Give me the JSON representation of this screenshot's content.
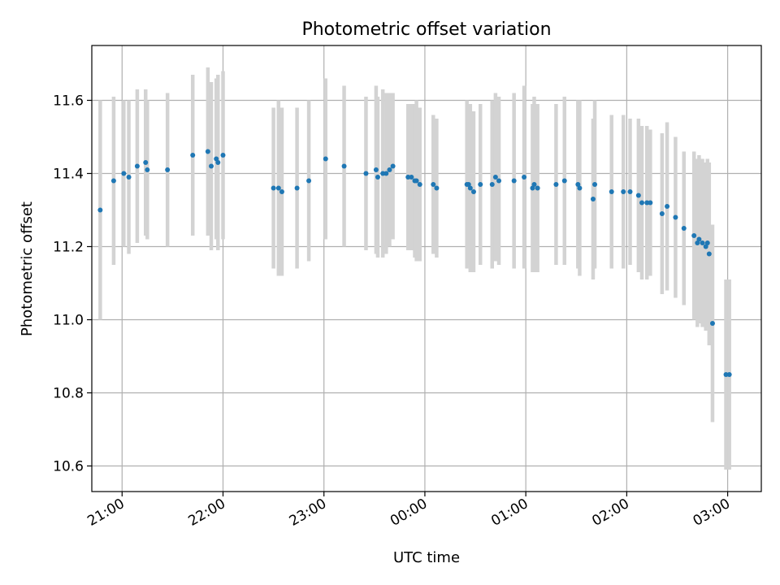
{
  "chart_data": {
    "type": "scatter",
    "title": "Photometric offset variation",
    "xlabel": "UTC time",
    "ylabel": "Photometric offset",
    "xlim": [
      "20:42",
      "03:20"
    ],
    "ylim": [
      10.53,
      11.75
    ],
    "grid": true,
    "x_ticks": [
      "21:00",
      "22:00",
      "23:00",
      "00:00",
      "01:00",
      "02:00",
      "03:00"
    ],
    "y_ticks": [
      "10.6",
      "10.8",
      "11.0",
      "11.2",
      "11.4",
      "11.6"
    ],
    "colors": {
      "point": "#1f77b4",
      "errorbar": "#d3d3d3",
      "grid": "#b0b0b0"
    },
    "series": [
      {
        "x": [
          "20:47",
          "20:55",
          "21:01",
          "21:04",
          "21:09",
          "21:14",
          "21:15",
          "21:27",
          "21:42",
          "21:51",
          "21:53",
          "21:56",
          "21:57",
          "22:00",
          "22:30",
          "22:33",
          "22:35",
          "22:44",
          "22:51",
          "23:01",
          "23:12",
          "23:25",
          "23:31",
          "23:32",
          "23:35",
          "23:37",
          "23:39",
          "23:41",
          "23:50",
          "23:52",
          "23:54",
          "23:55",
          "23:57",
          "00:05",
          "00:07",
          "00:25",
          "00:26",
          "00:27",
          "00:29",
          "00:33",
          "00:40",
          "00:42",
          "00:44",
          "00:53",
          "00:59",
          "01:04",
          "01:05",
          "01:07",
          "01:18",
          "01:23",
          "01:31",
          "01:32",
          "01:40",
          "01:41",
          "01:51",
          "01:58",
          "02:02",
          "02:07",
          "02:09",
          "02:12",
          "02:14",
          "02:21",
          "02:24",
          "02:29",
          "02:34",
          "02:40",
          "02:42",
          "02:43",
          "02:45",
          "02:47",
          "02:48",
          "02:49",
          "02:51",
          "02:59",
          "03:01"
        ],
        "y": [
          11.3,
          11.38,
          11.4,
          11.39,
          11.42,
          11.43,
          11.41,
          11.41,
          11.45,
          11.46,
          11.42,
          11.44,
          11.43,
          11.45,
          11.36,
          11.36,
          11.35,
          11.36,
          11.38,
          11.44,
          11.42,
          11.4,
          11.41,
          11.39,
          11.4,
          11.4,
          11.41,
          11.42,
          11.39,
          11.39,
          11.38,
          11.38,
          11.37,
          11.37,
          11.36,
          11.37,
          11.37,
          11.36,
          11.35,
          11.37,
          11.37,
          11.39,
          11.38,
          11.38,
          11.39,
          11.36,
          11.37,
          11.36,
          11.37,
          11.38,
          11.37,
          11.36,
          11.33,
          11.37,
          11.35,
          11.35,
          11.35,
          11.34,
          11.32,
          11.32,
          11.32,
          11.29,
          11.31,
          11.28,
          11.25,
          11.23,
          11.21,
          11.22,
          11.21,
          11.2,
          11.21,
          11.18,
          10.99,
          10.85,
          10.85
        ],
        "yerr": [
          0.3,
          0.23,
          0.2,
          0.21,
          0.21,
          0.2,
          0.19,
          0.21,
          0.22,
          0.23,
          0.23,
          0.22,
          0.24,
          0.23,
          0.22,
          0.24,
          0.23,
          0.22,
          0.22,
          0.22,
          0.22,
          0.21,
          0.23,
          0.22,
          0.23,
          0.22,
          0.21,
          0.2,
          0.2,
          0.2,
          0.21,
          0.22,
          0.21,
          0.19,
          0.19,
          0.23,
          0.22,
          0.23,
          0.22,
          0.22,
          0.23,
          0.23,
          0.23,
          0.24,
          0.25,
          0.23,
          0.24,
          0.23,
          0.22,
          0.23,
          0.23,
          0.24,
          0.22,
          0.23,
          0.21,
          0.21,
          0.2,
          0.21,
          0.21,
          0.21,
          0.2,
          0.22,
          0.23,
          0.22,
          0.21,
          0.23,
          0.23,
          0.23,
          0.23,
          0.23,
          0.23,
          0.25,
          0.27,
          0.26,
          0.26
        ]
      }
    ]
  }
}
